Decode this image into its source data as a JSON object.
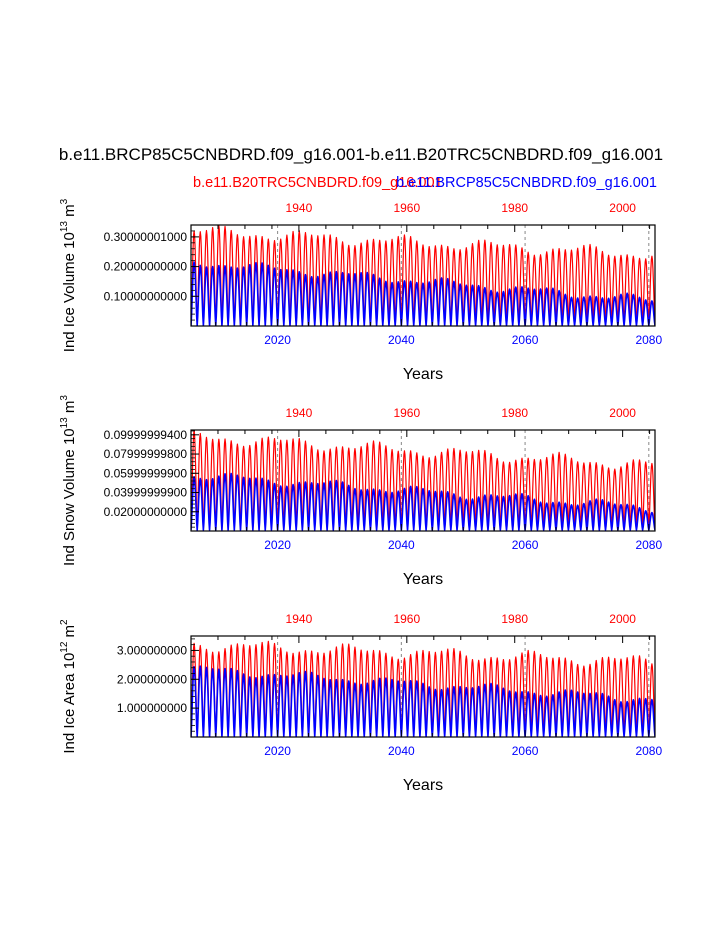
{
  "figure": {
    "title": "b.e11.BRCP85C5CNBDRD.f09_g16.001-b.e11.B20TRC5CNBDRD.f09_g16.001",
    "legend_red": "b.e11.B20TRC5CNBDRD.f09_g16.001",
    "legend_blue": "b.e11.BRCP85C5CNBDRD.f09_g16.001",
    "colors": {
      "red": "#ff0000",
      "blue": "#0000ff",
      "axis": "#000000",
      "ref": "#888888"
    }
  },
  "chart_data": [
    {
      "type": "line",
      "panel": "ice-volume",
      "ylabel_main": "Ind Ice Volume 10",
      "ylabel_exp": "13",
      "ylabel_unit": " m",
      "ylabel_unit_exp": "3",
      "xlabel": "Years",
      "ylim": [
        0,
        0.34
      ],
      "yticks": [
        0.1,
        0.2,
        0.3
      ],
      "ytick_labels": [
        "0.10000000000",
        "0.20000000000",
        "0.30000001000"
      ],
      "bottom_axis": {
        "range": [
          2006,
          2081
        ],
        "ticks": [
          2020,
          2040,
          2060,
          2080
        ],
        "labels": [
          "2020",
          "2040",
          "2060",
          "2080"
        ]
      },
      "top_axis": {
        "range": [
          1920,
          2006
        ],
        "ticks": [
          1940,
          1960,
          1980,
          2000
        ],
        "labels": [
          "1940",
          "1960",
          "1980",
          "2000"
        ]
      },
      "series": [
        {
          "name": "b.e11.B20TRC5CNBDRD.f09_g16.001",
          "color": "#ff0000",
          "annual_max_start": 0.32,
          "annual_max_end": 0.24,
          "annual_min": 0.005
        },
        {
          "name": "b.e11.BRCP85C5CNBDRD.f09_g16.001",
          "color": "#0000ff",
          "annual_max_start": 0.215,
          "annual_max_end": 0.085,
          "annual_min": 0.002
        }
      ]
    },
    {
      "type": "line",
      "panel": "snow-volume",
      "ylabel_main": "Ind Snow Volume 10",
      "ylabel_exp": "13",
      "ylabel_unit": " m",
      "ylabel_unit_exp": "3",
      "xlabel": "Years",
      "ylim": [
        0,
        0.105
      ],
      "yticks": [
        0.02,
        0.04,
        0.06,
        0.08,
        0.1
      ],
      "ytick_labels": [
        "0.02000000000",
        "0.03999999900",
        "0.05999999900",
        "0.07999999800",
        "0.09999999400"
      ],
      "bottom_axis": {
        "range": [
          2006,
          2081
        ],
        "ticks": [
          2020,
          2040,
          2060,
          2080
        ],
        "labels": [
          "2020",
          "2040",
          "2060",
          "2080"
        ]
      },
      "top_axis": {
        "range": [
          1920,
          2006
        ],
        "ticks": [
          1940,
          1960,
          1980,
          2000
        ],
        "labels": [
          "1940",
          "1960",
          "1980",
          "2000"
        ]
      },
      "series": [
        {
          "name": "b.e11.B20TRC5CNBDRD.f09_g16.001",
          "color": "#ff0000",
          "annual_max_start": 0.098,
          "annual_max_end": 0.068,
          "annual_min": 0.002
        },
        {
          "name": "b.e11.BRCP85C5CNBDRD.f09_g16.001",
          "color": "#0000ff",
          "annual_max_start": 0.058,
          "annual_max_end": 0.024,
          "annual_min": 0.001
        }
      ]
    },
    {
      "type": "line",
      "panel": "ice-area",
      "ylabel_main": "Ind Ice Area 10",
      "ylabel_exp": "12",
      "ylabel_unit": " m",
      "ylabel_unit_exp": "2",
      "xlabel": "Years",
      "ylim": [
        0,
        3.5
      ],
      "yticks": [
        1,
        2,
        3
      ],
      "ytick_labels": [
        "1.000000000",
        "2.000000000",
        "3.000000000"
      ],
      "bottom_axis": {
        "range": [
          2006,
          2081
        ],
        "ticks": [
          2020,
          2040,
          2060,
          2080
        ],
        "labels": [
          "2020",
          "2040",
          "2060",
          "2080"
        ]
      },
      "top_axis": {
        "range": [
          1920,
          2006
        ],
        "ticks": [
          1940,
          1960,
          1980,
          2000
        ],
        "labels": [
          "1940",
          "1960",
          "1980",
          "2000"
        ]
      },
      "series": [
        {
          "name": "b.e11.B20TRC5CNBDRD.f09_g16.001",
          "color": "#ff0000",
          "annual_max_start": 3.2,
          "annual_max_end": 2.6,
          "annual_min": 0.05
        },
        {
          "name": "b.e11.BRCP85C5CNBDRD.f09_g16.001",
          "color": "#0000ff",
          "annual_max_start": 2.35,
          "annual_max_end": 1.3,
          "annual_min": 0.02
        }
      ]
    }
  ]
}
